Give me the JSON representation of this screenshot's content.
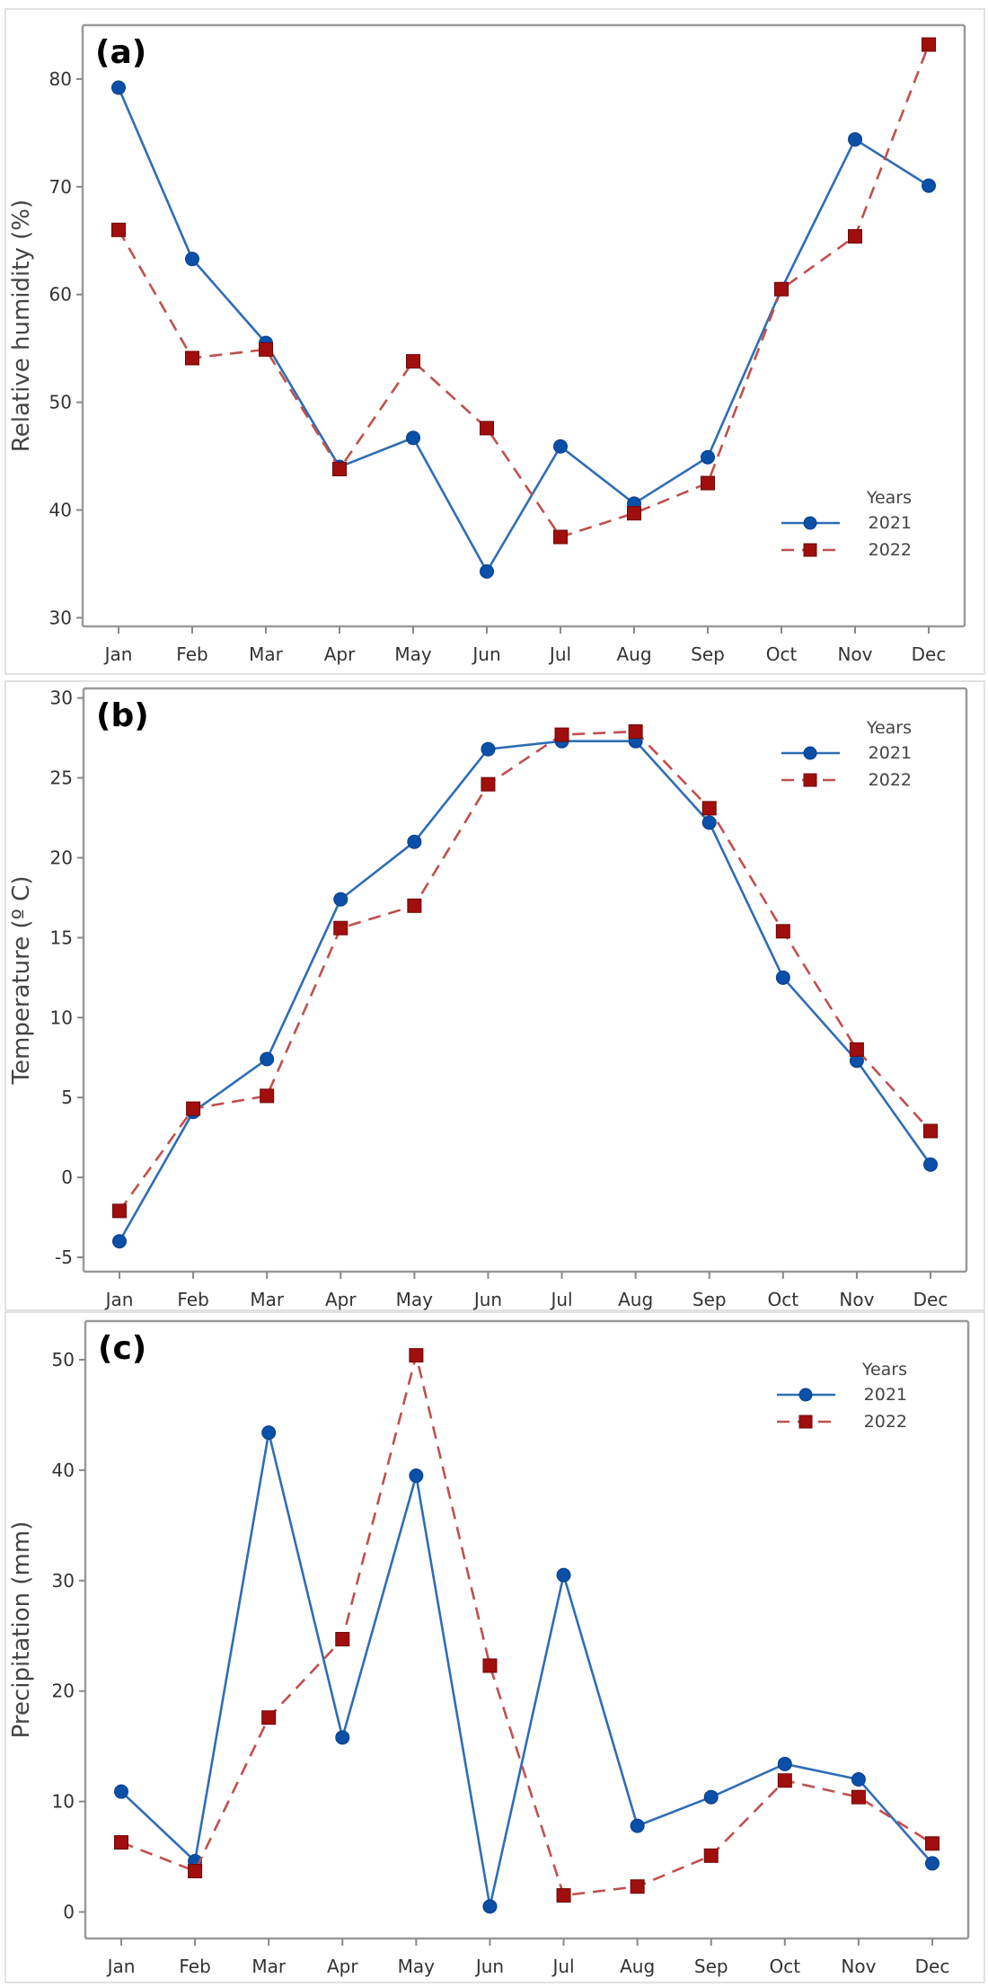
{
  "chart_data": [
    {
      "type": "line",
      "panel_tag": "(a)",
      "title": "",
      "xlabel": "",
      "ylabel": "Relative humidity (%)",
      "categories": [
        "Jan",
        "Feb",
        "Mar",
        "Apr",
        "May",
        "Jun",
        "Jul",
        "Aug",
        "Sep",
        "Oct",
        "Nov",
        "Dec"
      ],
      "yticks": [
        30,
        40,
        50,
        60,
        70,
        80
      ],
      "ylim": [
        29.2,
        85
      ],
      "grid": false,
      "legend": {
        "title": "Years",
        "placement": "bottom-right"
      },
      "series": [
        {
          "name": "2021",
          "color": "#0a4fa8",
          "line_style": "solid",
          "marker": "circle",
          "values": [
            79.2,
            63.3,
            55.5,
            44.0,
            46.7,
            34.3,
            45.9,
            40.6,
            44.9,
            60.5,
            74.4,
            70.1
          ]
        },
        {
          "name": "2022",
          "color": "#a10e0e",
          "line_style": "dashed",
          "marker": "square",
          "values": [
            66.0,
            54.1,
            54.9,
            43.8,
            53.8,
            47.6,
            37.5,
            39.7,
            42.5,
            60.5,
            65.4,
            83.2
          ]
        }
      ]
    },
    {
      "type": "line",
      "panel_tag": "(b)",
      "title": "",
      "xlabel": "",
      "ylabel": "Temperature (º C)",
      "categories": [
        "Jan",
        "Feb",
        "Mar",
        "Apr",
        "May",
        "Jun",
        "Jul",
        "Aug",
        "Sep",
        "Oct",
        "Nov",
        "Dec"
      ],
      "yticks": [
        -5,
        0,
        5,
        10,
        15,
        20,
        25,
        30
      ],
      "ylim": [
        -5.9,
        30.6
      ],
      "grid": false,
      "legend": {
        "title": "Years",
        "placement": "top-right"
      },
      "series": [
        {
          "name": "2021",
          "color": "#0a4fa8",
          "line_style": "solid",
          "marker": "circle",
          "values": [
            -4.0,
            4.1,
            7.4,
            17.4,
            21.0,
            26.8,
            27.3,
            27.3,
            22.2,
            12.5,
            7.3,
            0.8
          ]
        },
        {
          "name": "2022",
          "color": "#a10e0e",
          "line_style": "dashed",
          "marker": "square",
          "values": [
            -2.1,
            4.3,
            5.1,
            15.6,
            17.0,
            24.6,
            27.7,
            27.9,
            23.1,
            15.4,
            8.0,
            2.9
          ]
        }
      ]
    },
    {
      "type": "line",
      "panel_tag": "(c)",
      "title": "",
      "xlabel": "",
      "ylabel": "Precipitation (mm)",
      "categories": [
        "Jan",
        "Feb",
        "Mar",
        "Apr",
        "May",
        "Jun",
        "Jul",
        "Aug",
        "Sep",
        "Oct",
        "Nov",
        "Dec"
      ],
      "yticks": [
        0,
        10,
        20,
        30,
        40,
        50
      ],
      "ylim": [
        -2.4,
        53.5
      ],
      "grid": false,
      "legend": {
        "title": "Years",
        "placement": "top-right"
      },
      "series": [
        {
          "name": "2021",
          "color": "#0a4fa8",
          "line_style": "solid",
          "marker": "circle",
          "values": [
            10.9,
            4.6,
            43.4,
            15.8,
            39.5,
            0.5,
            30.5,
            7.8,
            10.4,
            13.4,
            12.0,
            4.4
          ]
        },
        {
          "name": "2022",
          "color": "#a10e0e",
          "line_style": "dashed",
          "marker": "square",
          "values": [
            6.3,
            3.7,
            17.6,
            24.7,
            50.4,
            22.3,
            1.5,
            2.3,
            5.1,
            11.9,
            10.4,
            6.2
          ]
        }
      ]
    }
  ]
}
